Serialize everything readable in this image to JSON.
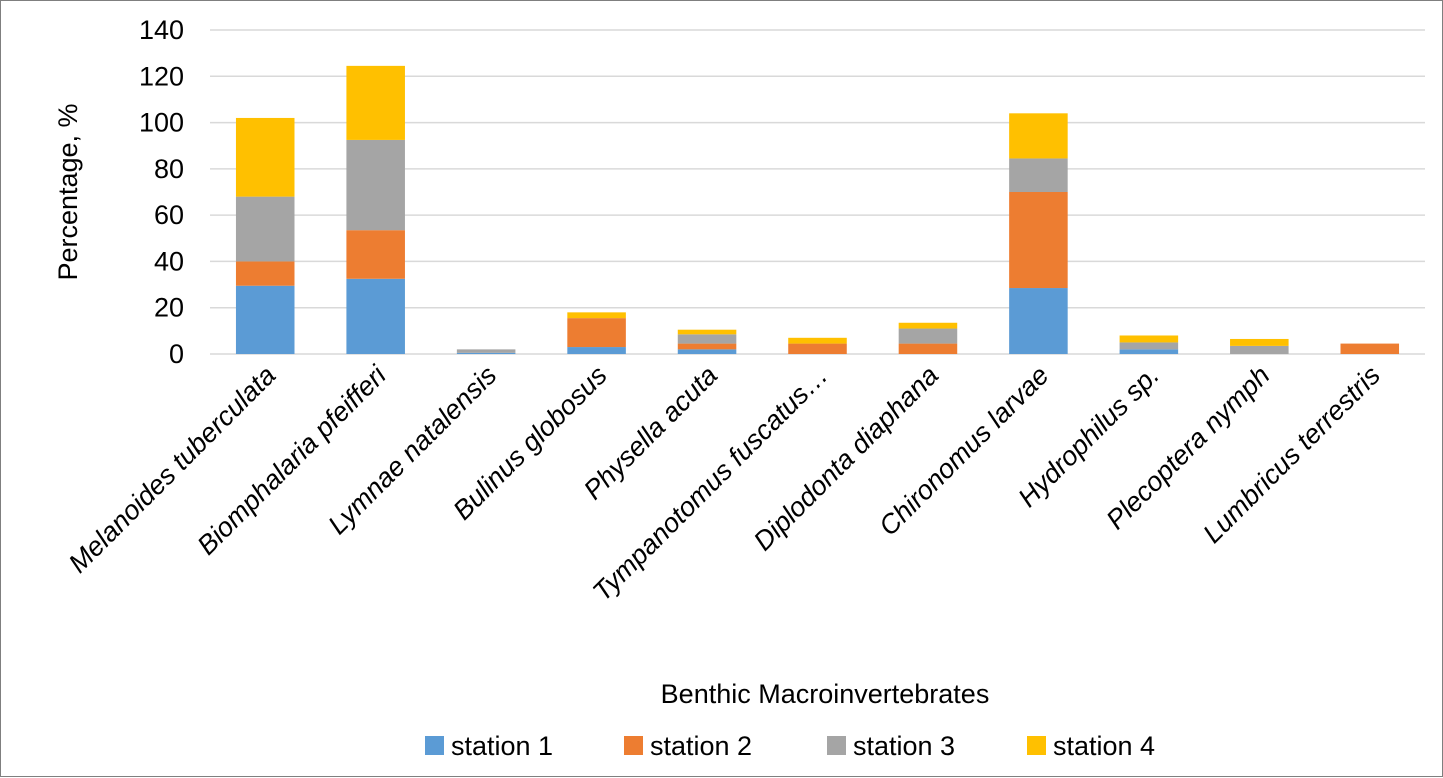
{
  "chart_data": {
    "type": "bar",
    "stacked": true,
    "title": "",
    "xlabel": "Benthic Macroinvertebrates",
    "ylabel": "Percentage, %",
    "ylim": [
      0,
      140
    ],
    "yticks": [
      0,
      20,
      40,
      60,
      80,
      100,
      120,
      140
    ],
    "grid": true,
    "legend_position": "bottom",
    "categories": [
      "Melanoides tuberculata",
      "Biomphalaria pfeifferi",
      "Lymnae natalensis",
      "Bulinus globosus",
      "Physella acuta",
      "Tympanotomus fuscatus…",
      "Diplodonta diaphana",
      "Chironomus larvae",
      "Hydrophilus  sp.",
      "Plecoptera nymph",
      "Lumbricus terrestris"
    ],
    "series": [
      {
        "name": "station 1",
        "color": "#5b9bd5",
        "values": [
          29.5,
          32.5,
          0.5,
          3,
          2,
          0,
          0,
          28.5,
          2,
          0,
          0
        ]
      },
      {
        "name": "station 2",
        "color": "#ed7d31",
        "values": [
          10.5,
          21,
          0,
          12.5,
          2.5,
          4.5,
          4.5,
          41.5,
          0,
          0,
          4.5
        ]
      },
      {
        "name": "station 3",
        "color": "#a5a5a5",
        "values": [
          28,
          39,
          1.5,
          0,
          4,
          0,
          6.5,
          14.5,
          3,
          3.5,
          0
        ]
      },
      {
        "name": "station 4",
        "color": "#ffc000",
        "values": [
          34,
          32,
          0,
          2.5,
          2,
          2.5,
          2.5,
          19.5,
          3,
          3,
          0
        ]
      }
    ]
  }
}
